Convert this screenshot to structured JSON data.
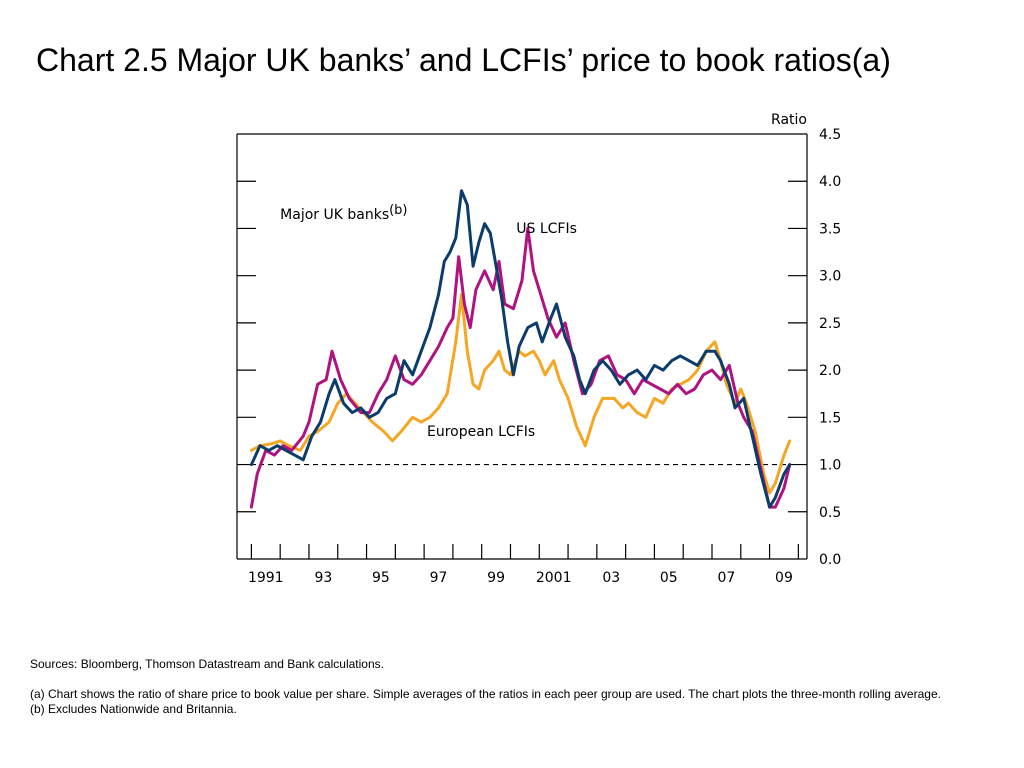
{
  "slide": {
    "title": "Chart 2.5  Major UK banks’ and LCFIs’ price to book ratios(a)"
  },
  "footnotes": {
    "sources": "Sources:  Bloomberg, Thomson Datastream and Bank calculations.",
    "note_a": "(a)   Chart shows the ratio of share price to book value per share.  Simple averages of the ratios in each peer group are used. The chart plots the three-month rolling average.",
    "note_b": "(b)   Excludes Nationwide and Britannia."
  },
  "chart_data": {
    "type": "line",
    "title": "",
    "xlabel": "",
    "ylabel": "Ratio",
    "xlim": [
      1990.5,
      2010.3
    ],
    "ylim": [
      0.0,
      4.5
    ],
    "y_ticks": [
      "0.0",
      "0.5",
      "1.0",
      "1.5",
      "2.0",
      "2.5",
      "3.0",
      "3.5",
      "4.0",
      "4.5"
    ],
    "x_tick_labels": [
      {
        "label": "1991",
        "x": 1991
      },
      {
        "label": "93",
        "x": 1993
      },
      {
        "label": "95",
        "x": 1995
      },
      {
        "label": "97",
        "x": 1997
      },
      {
        "label": "99",
        "x": 1999
      },
      {
        "label": "2001",
        "x": 2001
      },
      {
        "label": "03",
        "x": 2003
      },
      {
        "label": "05",
        "x": 2005
      },
      {
        "label": "07",
        "x": 2007
      },
      {
        "label": "09",
        "x": 2009
      }
    ],
    "reference_line": {
      "y": 1.0,
      "style": "dashed"
    },
    "grid": false,
    "series": [
      {
        "name": "European LCFIs",
        "color": "#F5A623",
        "points": [
          [
            1991.0,
            1.15
          ],
          [
            1991.3,
            1.2
          ],
          [
            1991.7,
            1.22
          ],
          [
            1992.0,
            1.25
          ],
          [
            1992.3,
            1.2
          ],
          [
            1992.7,
            1.15
          ],
          [
            1993.0,
            1.3
          ],
          [
            1993.3,
            1.35
          ],
          [
            1993.7,
            1.45
          ],
          [
            1994.0,
            1.65
          ],
          [
            1994.3,
            1.75
          ],
          [
            1994.6,
            1.65
          ],
          [
            1994.9,
            1.55
          ],
          [
            1995.2,
            1.45
          ],
          [
            1995.6,
            1.35
          ],
          [
            1995.9,
            1.25
          ],
          [
            1996.2,
            1.35
          ],
          [
            1996.6,
            1.5
          ],
          [
            1996.9,
            1.45
          ],
          [
            1997.2,
            1.5
          ],
          [
            1997.5,
            1.6
          ],
          [
            1997.8,
            1.75
          ],
          [
            1998.1,
            2.3
          ],
          [
            1998.3,
            2.8
          ],
          [
            1998.5,
            2.2
          ],
          [
            1998.7,
            1.85
          ],
          [
            1998.9,
            1.8
          ],
          [
            1999.1,
            2.0
          ],
          [
            1999.4,
            2.1
          ],
          [
            1999.6,
            2.2
          ],
          [
            1999.8,
            2.0
          ],
          [
            2000.0,
            1.95
          ],
          [
            2000.3,
            2.2
          ],
          [
            2000.5,
            2.15
          ],
          [
            2000.8,
            2.2
          ],
          [
            2001.0,
            2.1
          ],
          [
            2001.2,
            1.95
          ],
          [
            2001.5,
            2.1
          ],
          [
            2001.7,
            1.9
          ],
          [
            2002.0,
            1.7
          ],
          [
            2002.3,
            1.4
          ],
          [
            2002.6,
            1.2
          ],
          [
            2002.9,
            1.5
          ],
          [
            2003.2,
            1.7
          ],
          [
            2003.6,
            1.7
          ],
          [
            2003.9,
            1.6
          ],
          [
            2004.1,
            1.65
          ],
          [
            2004.4,
            1.55
          ],
          [
            2004.7,
            1.5
          ],
          [
            2005.0,
            1.7
          ],
          [
            2005.3,
            1.65
          ],
          [
            2005.6,
            1.8
          ],
          [
            2005.9,
            1.85
          ],
          [
            2006.2,
            1.9
          ],
          [
            2006.5,
            2.0
          ],
          [
            2006.8,
            2.2
          ],
          [
            2007.1,
            2.3
          ],
          [
            2007.3,
            2.1
          ],
          [
            2007.5,
            1.85
          ],
          [
            2007.8,
            1.65
          ],
          [
            2008.0,
            1.8
          ],
          [
            2008.2,
            1.65
          ],
          [
            2008.5,
            1.35
          ],
          [
            2008.8,
            0.9
          ],
          [
            2009.0,
            0.7
          ],
          [
            2009.2,
            0.8
          ],
          [
            2009.5,
            1.1
          ],
          [
            2009.7,
            1.25
          ]
        ]
      },
      {
        "name": "US LCFIs",
        "color": "#B0127F",
        "points": [
          [
            1991.0,
            0.55
          ],
          [
            1991.2,
            0.9
          ],
          [
            1991.5,
            1.15
          ],
          [
            1991.8,
            1.1
          ],
          [
            1992.1,
            1.2
          ],
          [
            1992.4,
            1.15
          ],
          [
            1992.8,
            1.3
          ],
          [
            1993.0,
            1.45
          ],
          [
            1993.3,
            1.85
          ],
          [
            1993.6,
            1.9
          ],
          [
            1993.8,
            2.2
          ],
          [
            1994.1,
            1.9
          ],
          [
            1994.4,
            1.7
          ],
          [
            1994.8,
            1.55
          ],
          [
            1995.1,
            1.55
          ],
          [
            1995.4,
            1.75
          ],
          [
            1995.7,
            1.9
          ],
          [
            1996.0,
            2.15
          ],
          [
            1996.3,
            1.9
          ],
          [
            1996.6,
            1.85
          ],
          [
            1996.9,
            1.95
          ],
          [
            1997.2,
            2.1
          ],
          [
            1997.5,
            2.25
          ],
          [
            1997.8,
            2.45
          ],
          [
            1998.0,
            2.55
          ],
          [
            1998.2,
            3.2
          ],
          [
            1998.4,
            2.7
          ],
          [
            1998.6,
            2.45
          ],
          [
            1998.8,
            2.85
          ],
          [
            1999.1,
            3.05
          ],
          [
            1999.4,
            2.85
          ],
          [
            1999.6,
            3.15
          ],
          [
            1999.8,
            2.7
          ],
          [
            2000.1,
            2.65
          ],
          [
            2000.4,
            2.95
          ],
          [
            2000.6,
            3.5
          ],
          [
            2000.8,
            3.05
          ],
          [
            2001.0,
            2.85
          ],
          [
            2001.3,
            2.55
          ],
          [
            2001.6,
            2.35
          ],
          [
            2001.9,
            2.5
          ],
          [
            2002.2,
            2.1
          ],
          [
            2002.5,
            1.75
          ],
          [
            2002.8,
            1.85
          ],
          [
            2003.1,
            2.1
          ],
          [
            2003.4,
            2.15
          ],
          [
            2003.7,
            1.95
          ],
          [
            2004.0,
            1.9
          ],
          [
            2004.3,
            1.75
          ],
          [
            2004.6,
            1.9
          ],
          [
            2004.9,
            1.85
          ],
          [
            2005.2,
            1.8
          ],
          [
            2005.5,
            1.75
          ],
          [
            2005.8,
            1.85
          ],
          [
            2006.1,
            1.75
          ],
          [
            2006.4,
            1.8
          ],
          [
            2006.7,
            1.95
          ],
          [
            2007.0,
            2.0
          ],
          [
            2007.3,
            1.9
          ],
          [
            2007.6,
            2.05
          ],
          [
            2007.9,
            1.65
          ],
          [
            2008.1,
            1.5
          ],
          [
            2008.4,
            1.35
          ],
          [
            2008.7,
            0.95
          ],
          [
            2009.0,
            0.55
          ],
          [
            2009.2,
            0.55
          ],
          [
            2009.5,
            0.75
          ],
          [
            2009.7,
            1.0
          ]
        ]
      },
      {
        "name": "Major UK banks(b)",
        "color": "#0B3C6B",
        "points": [
          [
            1991.0,
            1.0
          ],
          [
            1991.3,
            1.2
          ],
          [
            1991.6,
            1.15
          ],
          [
            1991.9,
            1.2
          ],
          [
            1992.2,
            1.15
          ],
          [
            1992.5,
            1.1
          ],
          [
            1992.8,
            1.05
          ],
          [
            1993.1,
            1.3
          ],
          [
            1993.4,
            1.45
          ],
          [
            1993.7,
            1.75
          ],
          [
            1993.9,
            1.9
          ],
          [
            1994.2,
            1.65
          ],
          [
            1994.5,
            1.55
          ],
          [
            1994.8,
            1.6
          ],
          [
            1995.1,
            1.5
          ],
          [
            1995.4,
            1.55
          ],
          [
            1995.7,
            1.7
          ],
          [
            1996.0,
            1.75
          ],
          [
            1996.3,
            2.1
          ],
          [
            1996.6,
            1.95
          ],
          [
            1996.9,
            2.2
          ],
          [
            1997.2,
            2.45
          ],
          [
            1997.5,
            2.8
          ],
          [
            1997.7,
            3.15
          ],
          [
            1997.9,
            3.25
          ],
          [
            1998.1,
            3.4
          ],
          [
            1998.3,
            3.9
          ],
          [
            1998.5,
            3.75
          ],
          [
            1998.7,
            3.1
          ],
          [
            1998.9,
            3.35
          ],
          [
            1999.1,
            3.55
          ],
          [
            1999.3,
            3.45
          ],
          [
            1999.5,
            3.1
          ],
          [
            1999.7,
            2.75
          ],
          [
            1999.9,
            2.3
          ],
          [
            2000.1,
            1.95
          ],
          [
            2000.3,
            2.25
          ],
          [
            2000.6,
            2.45
          ],
          [
            2000.9,
            2.5
          ],
          [
            2001.1,
            2.3
          ],
          [
            2001.4,
            2.55
          ],
          [
            2001.6,
            2.7
          ],
          [
            2001.9,
            2.35
          ],
          [
            2002.2,
            2.15
          ],
          [
            2002.4,
            1.9
          ],
          [
            2002.6,
            1.75
          ],
          [
            2002.9,
            2.0
          ],
          [
            2003.2,
            2.1
          ],
          [
            2003.5,
            2.0
          ],
          [
            2003.8,
            1.85
          ],
          [
            2004.1,
            1.95
          ],
          [
            2004.4,
            2.0
          ],
          [
            2004.7,
            1.9
          ],
          [
            2005.0,
            2.05
          ],
          [
            2005.3,
            2.0
          ],
          [
            2005.6,
            2.1
          ],
          [
            2005.9,
            2.15
          ],
          [
            2006.2,
            2.1
          ],
          [
            2006.5,
            2.05
          ],
          [
            2006.8,
            2.2
          ],
          [
            2007.1,
            2.2
          ],
          [
            2007.3,
            2.1
          ],
          [
            2007.6,
            1.85
          ],
          [
            2007.8,
            1.6
          ],
          [
            2008.1,
            1.7
          ],
          [
            2008.4,
            1.3
          ],
          [
            2008.7,
            0.9
          ],
          [
            2009.0,
            0.55
          ],
          [
            2009.2,
            0.65
          ],
          [
            2009.5,
            0.9
          ],
          [
            2009.7,
            1.0
          ]
        ]
      }
    ],
    "series_labels": [
      {
        "series": "Major UK banks(b)",
        "main": "Major UK banks",
        "sup": "(b)",
        "x": 1992.0,
        "y": 3.6
      },
      {
        "series": "US LCFIs",
        "main": "US LCFIs",
        "sup": "",
        "x": 2000.2,
        "y": 3.45
      },
      {
        "series": "European LCFIs",
        "main": "European LCFIs",
        "sup": "",
        "x": 1997.1,
        "y": 1.3
      }
    ]
  }
}
